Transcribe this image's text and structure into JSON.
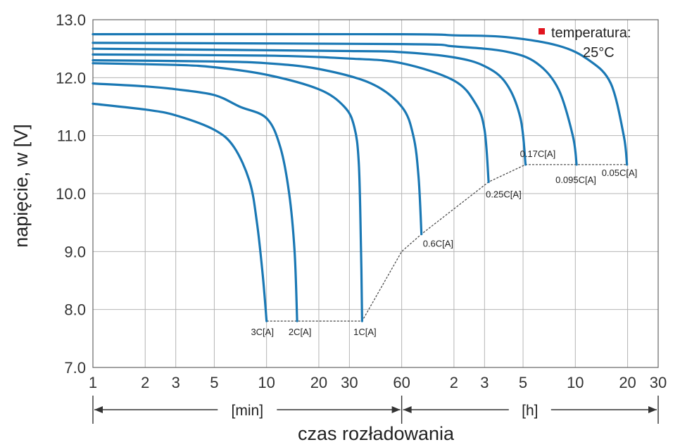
{
  "chart_data": {
    "type": "line",
    "ylabel": "napięcie, w [V]",
    "xlabel": "czas rozładowania",
    "ylim": [
      7.0,
      13.0
    ],
    "y_ticks": [
      "7.0",
      "8.0",
      "9.0",
      "10.0",
      "11.0",
      "12.0",
      "13.0"
    ],
    "x_scale": "log",
    "x_ticks": [
      {
        "label": "1",
        "minutes": 1
      },
      {
        "label": "2",
        "minutes": 2
      },
      {
        "label": "3",
        "minutes": 3
      },
      {
        "label": "5",
        "minutes": 5
      },
      {
        "label": "10",
        "minutes": 10
      },
      {
        "label": "20",
        "minutes": 20
      },
      {
        "label": "30",
        "minutes": 30
      },
      {
        "label": "60",
        "minutes": 60
      },
      {
        "label": "2",
        "minutes": 120
      },
      {
        "label": "3",
        "minutes": 180
      },
      {
        "label": "5",
        "minutes": 300
      },
      {
        "label": "10",
        "minutes": 600
      },
      {
        "label": "20",
        "minutes": 1200
      },
      {
        "label": "30",
        "minutes": 1800
      }
    ],
    "unit_ranges": [
      {
        "label": "[min]",
        "from_minutes": 1,
        "to_minutes": 60
      },
      {
        "label": "[h]",
        "from_minutes": 60,
        "to_minutes": 1800
      }
    ],
    "grid": true,
    "legend": {
      "label": "temperatura:",
      "value": "25°C",
      "color": "#e1141e",
      "placement": "top-right"
    },
    "line_color": "#1a78b4",
    "series": [
      {
        "name": "3C[A]",
        "end_voltage": 7.8,
        "points": [
          [
            1,
            11.55
          ],
          [
            2,
            11.45
          ],
          [
            3,
            11.35
          ],
          [
            5,
            11.1
          ],
          [
            6.5,
            10.8
          ],
          [
            8,
            10.2
          ],
          [
            8.8,
            9.5
          ],
          [
            9.5,
            8.6
          ],
          [
            10,
            7.8
          ]
        ]
      },
      {
        "name": "2C[A]",
        "end_voltage": 7.8,
        "points": [
          [
            1,
            11.9
          ],
          [
            2,
            11.85
          ],
          [
            3,
            11.8
          ],
          [
            5,
            11.7
          ],
          [
            7,
            11.5
          ],
          [
            10,
            11.3
          ],
          [
            12,
            10.8
          ],
          [
            13.5,
            10.0
          ],
          [
            14.5,
            9.0
          ],
          [
            15,
            7.8
          ]
        ]
      },
      {
        "name": "1C[A]",
        "end_voltage": 7.8,
        "points": [
          [
            1,
            12.25
          ],
          [
            3,
            12.22
          ],
          [
            5,
            12.18
          ],
          [
            10,
            12.05
          ],
          [
            20,
            11.8
          ],
          [
            28,
            11.5
          ],
          [
            32,
            11.15
          ],
          [
            34,
            10.5
          ],
          [
            35,
            9.0
          ],
          [
            35.5,
            7.8
          ]
        ]
      },
      {
        "name": "0.6C[A]",
        "end_voltage": 9.3,
        "points": [
          [
            1,
            12.3
          ],
          [
            5,
            12.28
          ],
          [
            10,
            12.25
          ],
          [
            20,
            12.15
          ],
          [
            40,
            11.9
          ],
          [
            60,
            11.5
          ],
          [
            70,
            11.0
          ],
          [
            75,
            10.3
          ],
          [
            78,
            9.3
          ]
        ]
      },
      {
        "name": "0.25C[A]",
        "end_voltage": 10.2,
        "points": [
          [
            1,
            12.4
          ],
          [
            10,
            12.38
          ],
          [
            30,
            12.33
          ],
          [
            60,
            12.25
          ],
          [
            120,
            11.95
          ],
          [
            160,
            11.55
          ],
          [
            180,
            11.1
          ],
          [
            190,
            10.2
          ]
        ]
      },
      {
        "name": "0.17C[A]",
        "end_voltage": 10.5,
        "points": [
          [
            1,
            12.5
          ],
          [
            30,
            12.46
          ],
          [
            60,
            12.44
          ],
          [
            120,
            12.35
          ],
          [
            180,
            12.2
          ],
          [
            240,
            11.9
          ],
          [
            290,
            11.3
          ],
          [
            310,
            10.5
          ]
        ]
      },
      {
        "name": "0.095C[A]",
        "end_voltage": 10.5,
        "points": [
          [
            1,
            12.6
          ],
          [
            60,
            12.58
          ],
          [
            120,
            12.54
          ],
          [
            240,
            12.45
          ],
          [
            360,
            12.25
          ],
          [
            480,
            11.8
          ],
          [
            580,
            11.0
          ],
          [
            610,
            10.5
          ]
        ]
      },
      {
        "name": "0.05C[A]",
        "end_voltage": 10.5,
        "points": [
          [
            1,
            12.75
          ],
          [
            60,
            12.75
          ],
          [
            120,
            12.73
          ],
          [
            240,
            12.7
          ],
          [
            480,
            12.55
          ],
          [
            720,
            12.3
          ],
          [
            960,
            11.9
          ],
          [
            1140,
            11.0
          ],
          [
            1190,
            10.5
          ]
        ]
      }
    ],
    "label_offsets_note": "",
    "endpoint_line": [
      [
        10,
        7.8
      ],
      [
        15,
        7.8
      ],
      [
        35.5,
        7.8
      ],
      [
        60,
        9.0
      ],
      [
        78,
        9.3
      ],
      [
        190,
        10.2
      ],
      [
        310,
        10.5
      ],
      [
        610,
        10.5
      ],
      [
        1190,
        10.5
      ]
    ]
  }
}
